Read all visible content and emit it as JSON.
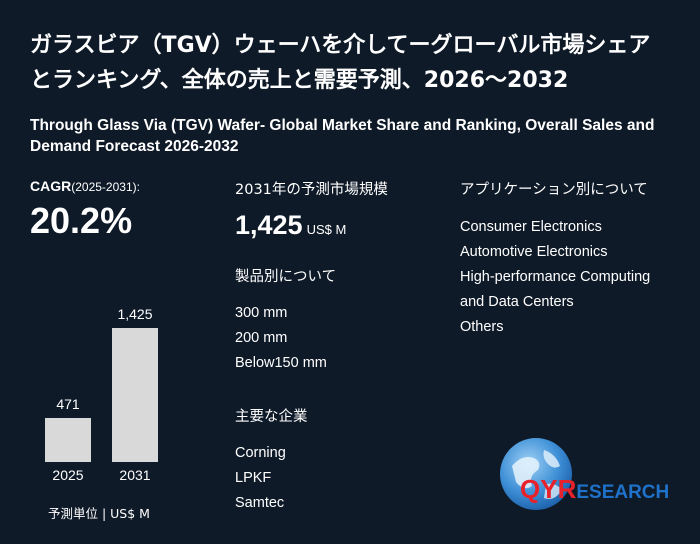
{
  "title_jp": "ガラスビア（TGV）ウェーハを介してーグローバル市場シェアとランキング、全体の売上と需要予測、2026～2032",
  "title_en": "Through Glass Via (TGV) Wafer- Global Market Share and Ranking, Overall Sales and Demand Forecast 2026-2032",
  "cagr": {
    "label": "CAGR",
    "period": "(2025-2031):",
    "value": "20.2%"
  },
  "chart_data": {
    "type": "bar",
    "categories": [
      "2025",
      "2031"
    ],
    "values": [
      471,
      1425
    ],
    "value_labels": [
      "471",
      "1,425"
    ]
  },
  "unit_note": "予測単位 | US$ M",
  "market_size": {
    "heading": "2031年の予測市場規模",
    "value": "1,425",
    "unit": "US$ M"
  },
  "product": {
    "heading": "製品別について",
    "items": [
      "300 mm",
      "200 mm",
      "Below150 mm"
    ]
  },
  "companies": {
    "heading": "主要な企業",
    "items": [
      "Corning",
      "LPKF",
      "Samtec"
    ]
  },
  "application": {
    "heading": "アプリケーション別について",
    "items": [
      "Consumer Electronics",
      "Automotive Electronics",
      "High-performance Computing",
      "and Data Centers",
      "Others"
    ]
  },
  "logo": {
    "qyr": "QYR",
    "research": "ESEARCH"
  },
  "colors": {
    "background": "#0f1a28",
    "bar": "#d9d9d9",
    "logo_red": "#e8212a",
    "logo_blue": "#1f72c9"
  }
}
